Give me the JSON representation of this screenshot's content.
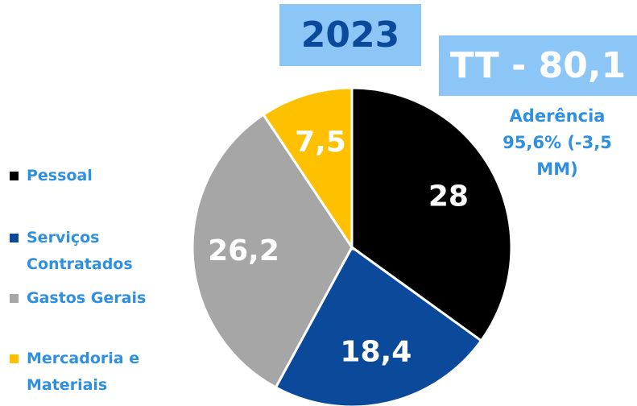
{
  "chart_data": {
    "type": "pie",
    "title": "2023",
    "total_label": "TT - 80,1",
    "annotation": "Aderência 95,6% (-3,5 MM)",
    "categories": [
      "Pessoal",
      "Serviços Contratados",
      "Gastos Gerais",
      "Mercadoria e Materiais"
    ],
    "values": [
      28,
      18.4,
      26.2,
      7.5
    ],
    "value_labels": [
      "28",
      "18,4",
      "26,2",
      "7,5"
    ],
    "colors": [
      "#000000",
      "#0b4a9b",
      "#a6a6a6",
      "#ffc000"
    ],
    "legend": "left"
  }
}
